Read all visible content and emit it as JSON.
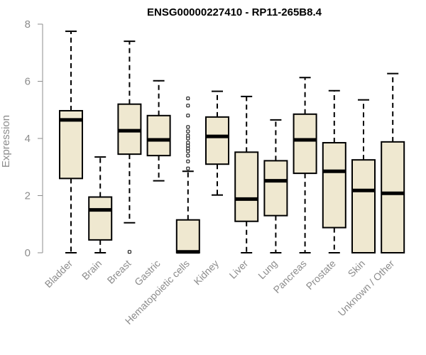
{
  "chart_data": {
    "type": "box",
    "title": "ENSG00000227410 - RP11-265B8.4",
    "ylabel": "Expression",
    "ylim": [
      0,
      8
    ],
    "yticks": [
      0,
      2,
      4,
      6,
      8
    ],
    "box_fill": "#efe8d0",
    "box_stroke": "#000000",
    "categories": [
      "Bladder",
      "Brain",
      "Breast",
      "Gastric",
      "Hematopoietic cells",
      "Kidney",
      "Liver",
      "Lung",
      "Pancreas",
      "Prostate",
      "Skin",
      "Unknown / Other"
    ],
    "boxes": [
      {
        "min": 0,
        "q1": 2.6,
        "median": 4.65,
        "q3": 4.97,
        "max": 7.75,
        "outliers": []
      },
      {
        "min": 0,
        "q1": 0.45,
        "median": 1.5,
        "q3": 1.95,
        "max": 3.35,
        "outliers": []
      },
      {
        "min": 1.05,
        "q1": 3.45,
        "median": 4.27,
        "q3": 5.2,
        "max": 7.4,
        "outliers": [
          0.03
        ]
      },
      {
        "min": 2.52,
        "q1": 3.4,
        "median": 3.95,
        "q3": 4.8,
        "max": 6.02,
        "outliers": []
      },
      {
        "min": 0,
        "q1": 0,
        "median": 0.03,
        "q3": 1.15,
        "max": 2.85,
        "outliers": [
          2.95,
          3.2,
          3.4,
          3.55,
          3.65,
          3.75,
          3.85,
          4.0,
          4.1,
          4.25,
          4.4,
          4.8,
          5.15,
          5.4
        ]
      },
      {
        "min": 2.02,
        "q1": 3.1,
        "median": 4.07,
        "q3": 4.75,
        "max": 5.65,
        "outliers": []
      },
      {
        "min": 0,
        "q1": 1.1,
        "median": 1.88,
        "q3": 3.52,
        "max": 5.47,
        "outliers": []
      },
      {
        "min": 0,
        "q1": 1.3,
        "median": 2.52,
        "q3": 3.22,
        "max": 4.65,
        "outliers": []
      },
      {
        "min": 0,
        "q1": 2.78,
        "median": 3.95,
        "q3": 4.85,
        "max": 6.13,
        "outliers": []
      },
      {
        "min": 0,
        "q1": 0.88,
        "median": 2.85,
        "q3": 3.85,
        "max": 5.67,
        "outliers": []
      },
      {
        "min": 0,
        "q1": 0,
        "median": 2.18,
        "q3": 3.25,
        "max": 5.35,
        "outliers": []
      },
      {
        "min": 0,
        "q1": 0,
        "median": 2.08,
        "q3": 3.88,
        "max": 6.27,
        "outliers": []
      }
    ]
  }
}
